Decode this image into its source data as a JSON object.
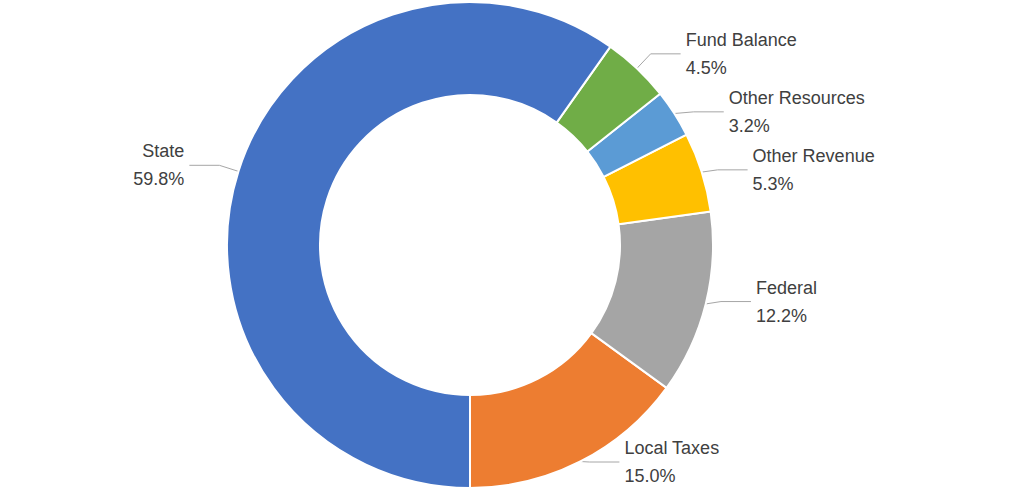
{
  "chart_data": {
    "type": "pie",
    "categories": [
      "Local Taxes",
      "Federal",
      "Other Revenue",
      "Other Resources",
      "Fund Balance",
      "State"
    ],
    "values": [
      15.0,
      12.2,
      5.3,
      3.2,
      4.5,
      59.8
    ],
    "value_labels": [
      "15.0%",
      "12.2%",
      "5.3%",
      "3.2%",
      "4.5%",
      "59.8%"
    ],
    "colors": [
      "#ed7d31",
      "#a5a5a5",
      "#ffc000",
      "#5b9bd5",
      "#70ad47",
      "#4472c4"
    ],
    "data_labels": true
  }
}
